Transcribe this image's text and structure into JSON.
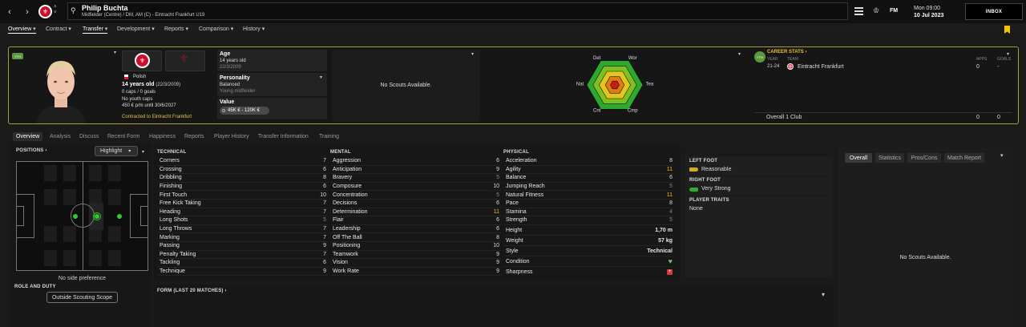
{
  "header": {
    "player_name": "Philip Buchta",
    "player_sub": "Midfielder (Centre) / DM, AM (C) - Eintracht Frankfurt U19",
    "date_line1": "Mon 09:00",
    "date_line2": "10 Jul 2023",
    "inbox_label": "INBOX",
    "fm_label": "FM"
  },
  "menu": [
    "Overview",
    "Contract",
    "Transfer",
    "Development",
    "Reports",
    "Comparison",
    "History"
  ],
  "profile": {
    "badge": "YTH",
    "nationality": "Polish",
    "age_line": "14 years old",
    "dob_paren": "(22/3/2009)",
    "caps": "0 caps / 0 goals",
    "youth_caps": "No youth caps",
    "wage": "450 € p/m until 30/6/2027",
    "contract": "Contracted to Eintracht Frankfurt"
  },
  "info": {
    "age_label": "Age",
    "age_value": "14 years old",
    "age_dob": "22/3/2009",
    "personality_label": "Personality",
    "personality_value": "Balanced",
    "personality_sub": "Young midfielder",
    "value_label": "Value",
    "value_amount": "45K € - 120K €"
  },
  "scouts": {
    "text": "No Scouts Available."
  },
  "radar": {
    "labels": [
      "Det",
      "Wor",
      "Tea",
      "Cmp",
      "Cnt",
      "Nat"
    ],
    "levels": [
      1.0,
      0.78,
      0.56,
      0.34
    ],
    "level_colors": [
      "#2fa82f",
      "#7cc11f",
      "#e3c51b",
      "#e07a12",
      "#c61d14"
    ]
  },
  "career": {
    "title": "CAREER STATS",
    "badge": "YTH",
    "col_year": "YEAR",
    "col_team": "TEAM",
    "col_apps": "APPS",
    "col_goals": "GOALS",
    "rows": [
      {
        "year": "21-24",
        "team": "Eintracht Frankfurt",
        "apps": "0",
        "goals": "-"
      }
    ],
    "total_label": "Overall 1 Club",
    "total_apps": "0",
    "total_goals": "0"
  },
  "subtabs": [
    "Overview",
    "Analysis",
    "Discuss",
    "Recent Form",
    "Happiness",
    "Reports",
    "Player History",
    "Transfer Information",
    "Training"
  ],
  "positions": {
    "title": "POSITIONS",
    "highlight": "Highlight",
    "pref": "No side preference",
    "role_title": "ROLE AND DUTY",
    "scope_button": "Outside Scouting Scope"
  },
  "technical": {
    "title": "TECHNICAL",
    "rows": [
      {
        "name": "Corners",
        "value": "7"
      },
      {
        "name": "Crossing",
        "value": "6"
      },
      {
        "name": "Dribbling",
        "value": "8"
      },
      {
        "name": "Finishing",
        "value": "6"
      },
      {
        "name": "First Touch",
        "value": "10"
      },
      {
        "name": "Free Kick Taking",
        "value": "7"
      },
      {
        "name": "Heading",
        "value": "7"
      },
      {
        "name": "Long Shots",
        "value": "5"
      },
      {
        "name": "Long Throws",
        "value": "7"
      },
      {
        "name": "Marking",
        "value": "7"
      },
      {
        "name": "Passing",
        "value": "9"
      },
      {
        "name": "Penalty Taking",
        "value": "7"
      },
      {
        "name": "Tackling",
        "value": "6"
      },
      {
        "name": "Technique",
        "value": "9"
      }
    ]
  },
  "mental": {
    "title": "MENTAL",
    "rows": [
      {
        "name": "Aggression",
        "value": "6"
      },
      {
        "name": "Anticipation",
        "value": "9"
      },
      {
        "name": "Bravery",
        "value": "5"
      },
      {
        "name": "Composure",
        "value": "10"
      },
      {
        "name": "Concentration",
        "value": "5"
      },
      {
        "name": "Decisions",
        "value": "6"
      },
      {
        "name": "Determination",
        "value": "11"
      },
      {
        "name": "Flair",
        "value": "6"
      },
      {
        "name": "Leadership",
        "value": "6"
      },
      {
        "name": "Off The Ball",
        "value": "8"
      },
      {
        "name": "Positioning",
        "value": "10"
      },
      {
        "name": "Teamwork",
        "value": "9"
      },
      {
        "name": "Vision",
        "value": "9"
      },
      {
        "name": "Work Rate",
        "value": "9"
      }
    ]
  },
  "physical": {
    "title": "PHYSICAL",
    "rows": [
      {
        "name": "Acceleration",
        "value": "8"
      },
      {
        "name": "Agility",
        "value": "11"
      },
      {
        "name": "Balance",
        "value": "6"
      },
      {
        "name": "Jumping Reach",
        "value": "5"
      },
      {
        "name": "Natural Fitness",
        "value": "11"
      },
      {
        "name": "Pace",
        "value": "8"
      },
      {
        "name": "Stamina",
        "value": "4"
      },
      {
        "name": "Strength",
        "value": "5"
      }
    ],
    "height_label": "Height",
    "height_value": "1,70 m",
    "weight_label": "Weight",
    "weight_value": "57 kg",
    "style_label": "Style",
    "style_value": "Technical",
    "condition_label": "Condition",
    "sharpness_label": "Sharpness"
  },
  "feet": {
    "left_title": "LEFT FOOT",
    "left_value": "Reasonable",
    "right_title": "RIGHT FOOT",
    "right_value": "Very Strong",
    "traits_title": "PLAYER TRAITS",
    "traits_value": "None"
  },
  "form": {
    "title": "FORM (LAST 20 MATCHES)"
  },
  "right_panel": {
    "tabs": [
      "Overall",
      "Statistics",
      "Pros/Cons",
      "Match Report"
    ],
    "text": "No Scouts Available."
  },
  "colors": {
    "accent": "#e8c23a",
    "frame": "#a89c3c",
    "club_red": "#c8102e"
  }
}
